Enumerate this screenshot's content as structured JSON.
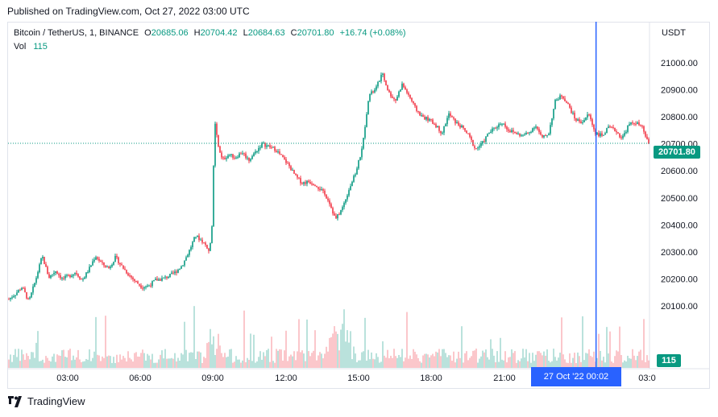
{
  "header": {
    "published": "Published on TradingView.com, Oct 27, 2022 03:00 UTC"
  },
  "legend": {
    "symbol": "Bitcoin / TetherUS, 1, BINANCE",
    "o_label": "O",
    "o_value": "20685.06",
    "h_label": "H",
    "h_value": "20704.42",
    "l_label": "L",
    "l_value": "20684.63",
    "c_label": "C",
    "c_value": "20701.80",
    "change": "+16.74 (+0.08%)",
    "vol_label": "Vol",
    "vol_value": "115"
  },
  "currency": "USDT",
  "last_price_tag": "20701.80",
  "volume_tag": "115",
  "cursor_label": "27 Oct '22   00:02",
  "footer": {
    "brand": "TradingView"
  },
  "colors": {
    "up": "#089981",
    "down": "#f23645",
    "cursor": "#2962ff"
  },
  "chart_data": {
    "type": "candlestick",
    "y_ticks": [
      "20100.00",
      "20200.00",
      "20300.00",
      "20400.00",
      "20500.00",
      "20600.00",
      "20700.00",
      "20800.00",
      "20900.00",
      "21000.00"
    ],
    "x_ticks": [
      "03:00",
      "06:00",
      "09:00",
      "12:00",
      "15:00",
      "18:00",
      "21:00",
      "03:0"
    ],
    "ylim": [
      20000,
      21100
    ],
    "last_close": 20701.8,
    "price_path": [
      [
        0,
        20125
      ],
      [
        1,
        20145
      ],
      [
        2,
        20170
      ],
      [
        3,
        20115
      ],
      [
        4,
        20195
      ],
      [
        5,
        20285
      ],
      [
        6,
        20205
      ],
      [
        7,
        20230
      ],
      [
        8,
        20200
      ],
      [
        9,
        20210
      ],
      [
        10,
        20225
      ],
      [
        11,
        20195
      ],
      [
        12,
        20235
      ],
      [
        13,
        20285
      ],
      [
        14,
        20255
      ],
      [
        15,
        20240
      ],
      [
        16,
        20280
      ],
      [
        17,
        20245
      ],
      [
        18,
        20215
      ],
      [
        19,
        20190
      ],
      [
        20,
        20170
      ],
      [
        21,
        20175
      ],
      [
        22,
        20195
      ],
      [
        23,
        20200
      ],
      [
        24,
        20210
      ],
      [
        25,
        20225
      ],
      [
        26,
        20250
      ],
      [
        27,
        20300
      ],
      [
        28,
        20360
      ],
      [
        29,
        20340
      ],
      [
        30,
        20310
      ],
      [
        30.4,
        20340
      ],
      [
        30.9,
        20780
      ],
      [
        31.4,
        20690
      ],
      [
        32,
        20640
      ],
      [
        33,
        20660
      ],
      [
        34,
        20650
      ],
      [
        35,
        20670
      ],
      [
        36,
        20640
      ],
      [
        37,
        20670
      ],
      [
        38,
        20700
      ],
      [
        39,
        20690
      ],
      [
        40,
        20680
      ],
      [
        41,
        20650
      ],
      [
        42,
        20620
      ],
      [
        43,
        20580
      ],
      [
        44,
        20555
      ],
      [
        45,
        20560
      ],
      [
        46,
        20550
      ],
      [
        47,
        20525
      ],
      [
        48,
        20490
      ],
      [
        49,
        20420
      ],
      [
        50,
        20460
      ],
      [
        51,
        20530
      ],
      [
        52,
        20590
      ],
      [
        53,
        20680
      ],
      [
        54,
        20880
      ],
      [
        55,
        20900
      ],
      [
        56,
        20960
      ],
      [
        57,
        20890
      ],
      [
        58,
        20860
      ],
      [
        59,
        20920
      ],
      [
        60,
        20880
      ],
      [
        61,
        20830
      ],
      [
        62,
        20800
      ],
      [
        63,
        20790
      ],
      [
        64,
        20770
      ],
      [
        65,
        20740
      ],
      [
        66,
        20810
      ],
      [
        67,
        20780
      ],
      [
        68,
        20760
      ],
      [
        69,
        20730
      ],
      [
        70,
        20680
      ],
      [
        71,
        20700
      ],
      [
        72,
        20740
      ],
      [
        73,
        20760
      ],
      [
        74,
        20780
      ],
      [
        75,
        20750
      ],
      [
        76,
        20740
      ],
      [
        77,
        20730
      ],
      [
        78,
        20740
      ],
      [
        79,
        20770
      ],
      [
        80,
        20720
      ],
      [
        81,
        20740
      ],
      [
        82,
        20860
      ],
      [
        83,
        20880
      ],
      [
        84,
        20840
      ],
      [
        85,
        20790
      ],
      [
        86,
        20780
      ],
      [
        87,
        20810
      ],
      [
        88,
        20740
      ],
      [
        89,
        20730
      ],
      [
        90,
        20760
      ],
      [
        91,
        20750
      ],
      [
        92,
        20720
      ],
      [
        93,
        20770
      ],
      [
        94,
        20780
      ],
      [
        95,
        20760
      ],
      [
        96,
        20701
      ]
    ],
    "crosshair_x_index": 88
  }
}
